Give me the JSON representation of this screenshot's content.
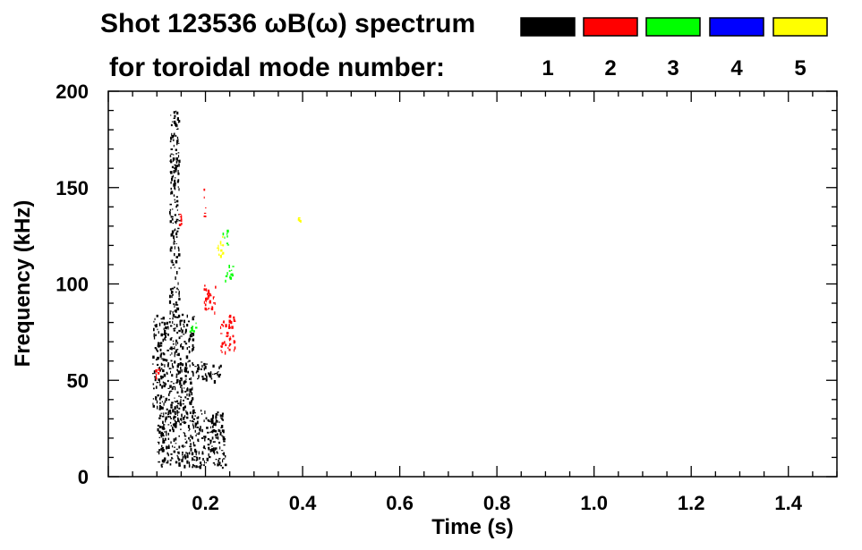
{
  "title_line1": "Shot 123536 ωB(ω) spectrum",
  "title_line2": "for toroidal mode number:",
  "legend": [
    {
      "label": "1",
      "color": "#000000"
    },
    {
      "label": "2",
      "color": "#ff0000"
    },
    {
      "label": "3",
      "color": "#00ff00"
    },
    {
      "label": "4",
      "color": "#0000ff"
    },
    {
      "label": "5",
      "color": "#ffff00"
    }
  ],
  "chart_data": {
    "type": "spectrogram",
    "title": "Shot 123536 ωB(ω) spectrum",
    "xlabel": "Time (s)",
    "ylabel": "Frequency (kHz)",
    "xlim": [
      0.0,
      1.5
    ],
    "ylim": [
      0,
      200
    ],
    "xticks": [
      0.2,
      0.4,
      0.6,
      0.8,
      1.0,
      1.2,
      1.4
    ],
    "xtick_labels": [
      "0.2",
      "0.4",
      "0.6",
      "0.8",
      "1.0",
      "1.2",
      "1.4"
    ],
    "yticks": [
      0,
      50,
      100,
      150,
      200
    ],
    "ytick_labels": [
      "0",
      "50",
      "100",
      "150",
      "200"
    ],
    "series": [
      {
        "name": "1",
        "color": "#000000",
        "regions": [
          {
            "t": [
              0.09,
              0.175
            ],
            "f": [
              35,
              85
            ]
          },
          {
            "t": [
              0.175,
              0.23
            ],
            "f": [
              50,
              60
            ]
          },
          {
            "t": [
              0.125,
              0.145
            ],
            "f": [
              85,
              190
            ]
          },
          {
            "t": [
              0.1,
              0.24
            ],
            "f": [
              5,
              35
            ]
          }
        ]
      },
      {
        "name": "2",
        "color": "#ff0000",
        "regions": [
          {
            "t": [
              0.195,
              0.22
            ],
            "f": [
              85,
              100
            ]
          },
          {
            "t": [
              0.23,
              0.26
            ],
            "f": [
              65,
              85
            ]
          },
          {
            "t": [
              0.095,
              0.105
            ],
            "f": [
              50,
              57
            ]
          },
          {
            "t": [
              0.145,
              0.15
            ],
            "f": [
              130,
              137
            ]
          },
          {
            "t": [
              0.195,
              0.2
            ],
            "f": [
              135,
              150
            ]
          }
        ]
      },
      {
        "name": "3",
        "color": "#00ff00",
        "regions": [
          {
            "t": [
              0.165,
              0.185
            ],
            "f": [
              75,
              80
            ]
          },
          {
            "t": [
              0.24,
              0.255
            ],
            "f": [
              100,
              110
            ]
          },
          {
            "t": [
              0.235,
              0.245
            ],
            "f": [
              120,
              130
            ]
          }
        ]
      },
      {
        "name": "5",
        "color": "#ffff00",
        "regions": [
          {
            "t": [
              0.22,
              0.235
            ],
            "f": [
              115,
              125
            ]
          },
          {
            "t": [
              0.39,
              0.395
            ],
            "f": [
              132,
              136
            ]
          }
        ]
      }
    ]
  }
}
